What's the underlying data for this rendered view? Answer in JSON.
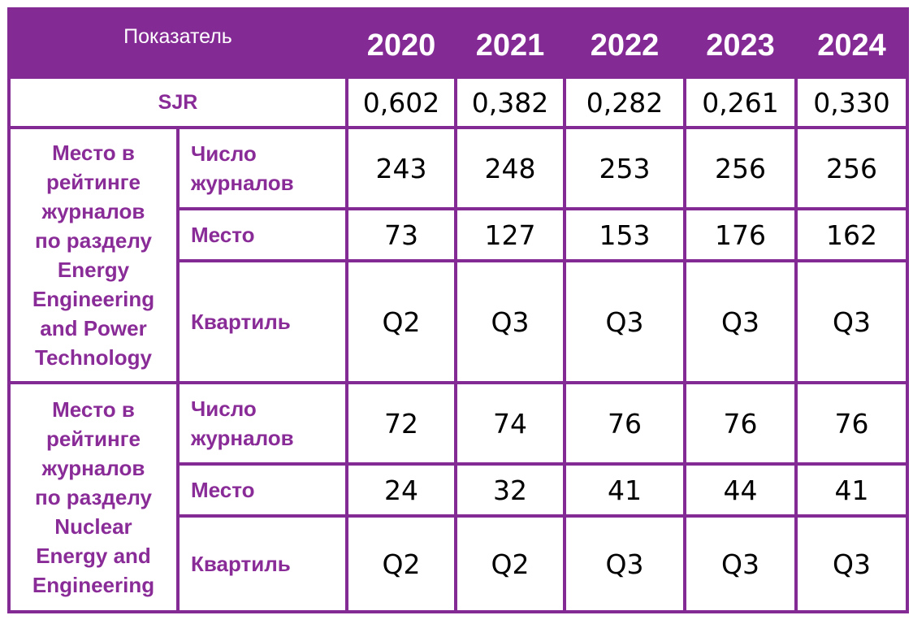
{
  "table": {
    "header": {
      "indicator": "Показатель",
      "years": [
        "2020",
        "2021",
        "2022",
        "2023",
        "2024"
      ]
    },
    "sjr": {
      "label": "SJR",
      "values": [
        "0,602",
        "0,382",
        "0,282",
        "0,261",
        "0,330"
      ]
    },
    "groups": [
      {
        "title_lines": [
          "Место в",
          "рейтинге",
          "журналов",
          "по разделу",
          "Energy",
          "Engineering",
          "and Power",
          "Technology"
        ],
        "count_label_lines": [
          "Число",
          "журналов"
        ],
        "count_values": [
          "243",
          "248",
          "253",
          "256",
          "256"
        ],
        "place_label": "Место",
        "place_values": [
          "73",
          "127",
          "153",
          "176",
          "162"
        ],
        "quartile_label": "Квартиль",
        "quartile_values": [
          "Q2",
          "Q3",
          "Q3",
          "Q3",
          "Q3"
        ]
      },
      {
        "title_lines": [
          "Место в",
          "рейтинге",
          "журналов",
          "по разделу",
          "Nuclear",
          "Energy and",
          "Engineering"
        ],
        "count_label_lines": [
          "Число",
          "журналов"
        ],
        "count_values": [
          "72",
          "74",
          "76",
          "76",
          "76"
        ],
        "place_label": "Место",
        "place_values": [
          "24",
          "32",
          "41",
          "44",
          "41"
        ],
        "quartile_label": "Квартиль",
        "quartile_values": [
          "Q2",
          "Q2",
          "Q3",
          "Q3",
          "Q3"
        ]
      }
    ],
    "colors": {
      "accent": "#842a95",
      "label_text": "#8a2c98",
      "header_text": "#ffffff",
      "value_text": "#000000"
    }
  }
}
